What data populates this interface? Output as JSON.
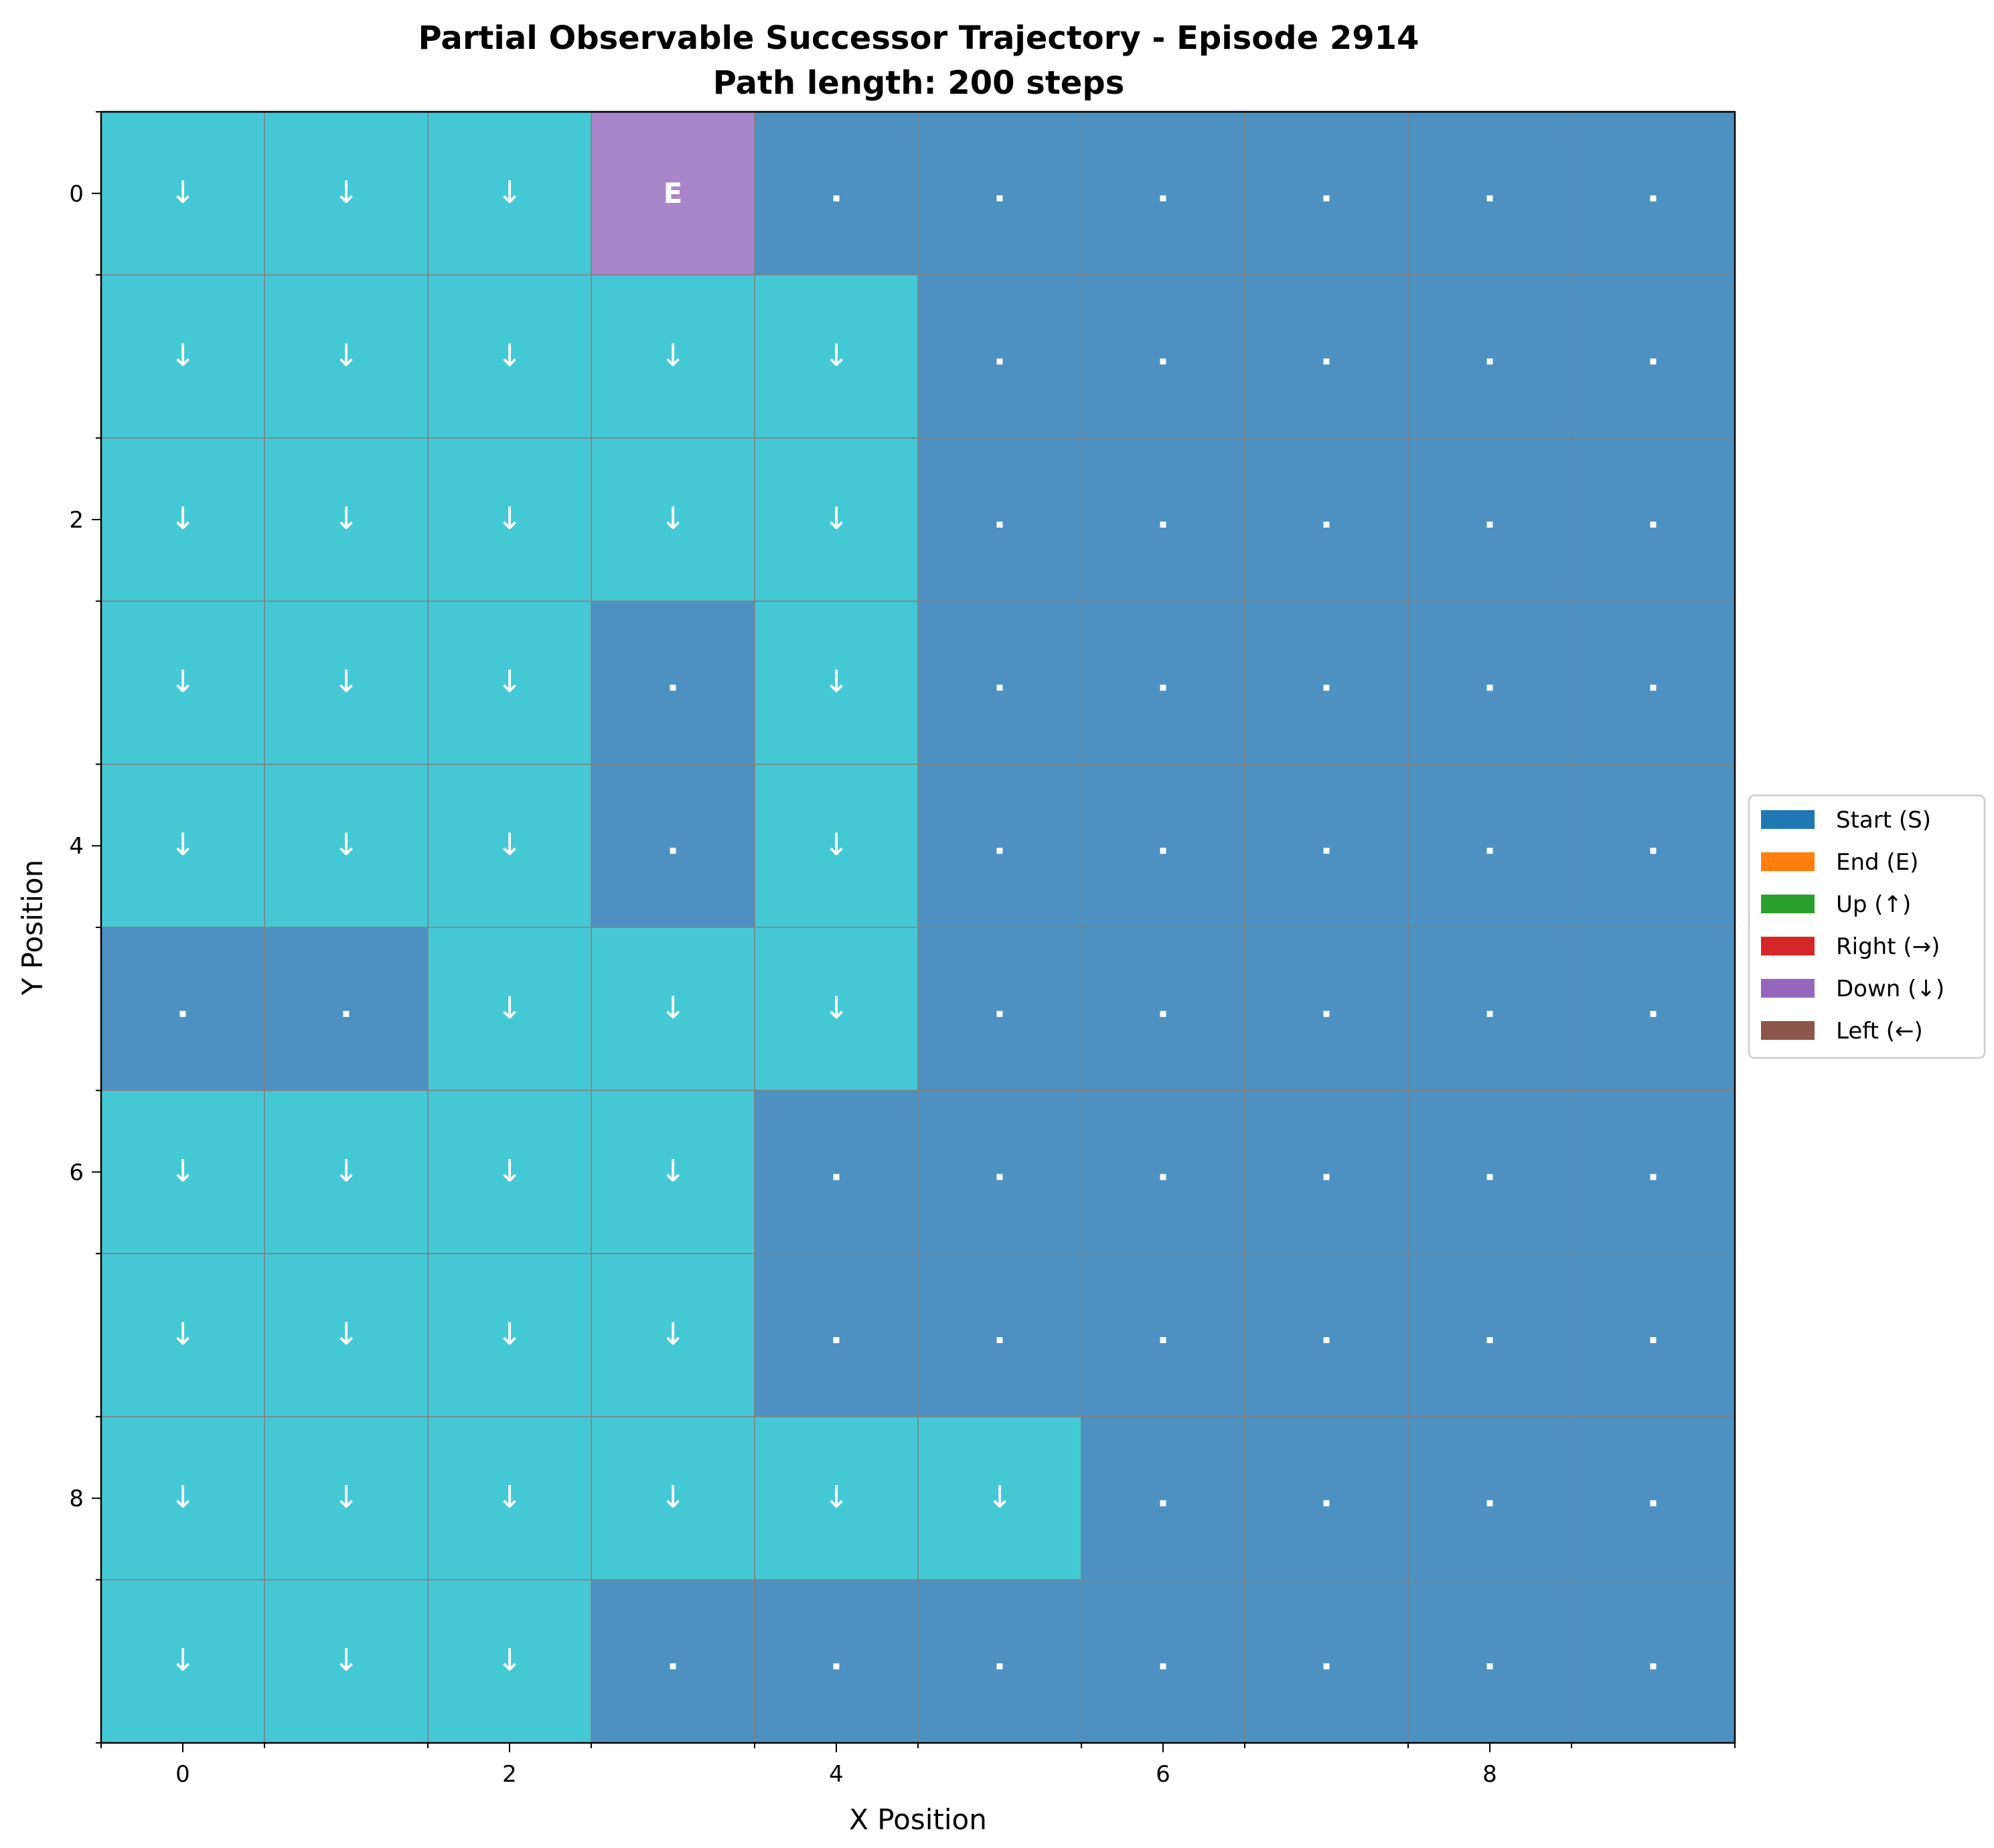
{
  "chart_data": {
    "type": "heatmap",
    "title_line1": "Partial Observable Successor Trajectory - Episode 2914",
    "title_line2": "Path length: 200 steps",
    "xlabel": "X Position",
    "ylabel": "Y Position",
    "x_ticks": [
      "0",
      "2",
      "4",
      "6",
      "8"
    ],
    "y_ticks": [
      "0",
      "2",
      "4",
      "6",
      "8"
    ],
    "xlim": [
      -0.5,
      9.5
    ],
    "ylim": [
      9.5,
      -0.5
    ],
    "grid": true,
    "legend_position": "right, outside plot",
    "legend": [
      {
        "label": "Start (S)",
        "color": "#1f77b4"
      },
      {
        "label": "End (E)",
        "color": "#ff7f0e"
      },
      {
        "label": "Up (↑)",
        "color": "#2ca02c"
      },
      {
        "label": "Right (→)",
        "color": "#d62728"
      },
      {
        "label": "Down (↓)",
        "color": "#9467bd"
      },
      {
        "label": "Left (←)",
        "color": "#8c564b"
      }
    ],
    "cell_colors": {
      "unvisited": "#4c91c2",
      "visited": "#45c8d6",
      "end": "#a986cb"
    },
    "grid_cells": [
      [
        "↓",
        "↓",
        "↓",
        "E",
        ".",
        ".",
        ".",
        ".",
        ".",
        "."
      ],
      [
        "↓",
        "↓",
        "↓",
        "↓",
        "↓",
        ".",
        ".",
        ".",
        ".",
        "."
      ],
      [
        "↓",
        "↓",
        "↓",
        "↓",
        "↓",
        ".",
        ".",
        ".",
        ".",
        "."
      ],
      [
        "↓",
        "↓",
        "↓",
        ".",
        "↓",
        ".",
        ".",
        ".",
        ".",
        "."
      ],
      [
        "↓",
        "↓",
        "↓",
        ".",
        "↓",
        ".",
        ".",
        ".",
        ".",
        "."
      ],
      [
        ".",
        ".",
        "↓",
        "↓",
        "↓",
        ".",
        ".",
        ".",
        ".",
        "."
      ],
      [
        "↓",
        "↓",
        "↓",
        "↓",
        ".",
        ".",
        ".",
        ".",
        ".",
        "."
      ],
      [
        "↓",
        "↓",
        "↓",
        "↓",
        ".",
        ".",
        ".",
        ".",
        ".",
        "."
      ],
      [
        "↓",
        "↓",
        "↓",
        "↓",
        "↓",
        "↓",
        ".",
        ".",
        ".",
        "."
      ],
      [
        "↓",
        "↓",
        "↓",
        ".",
        ".",
        ".",
        ".",
        ".",
        ".",
        "."
      ]
    ]
  }
}
